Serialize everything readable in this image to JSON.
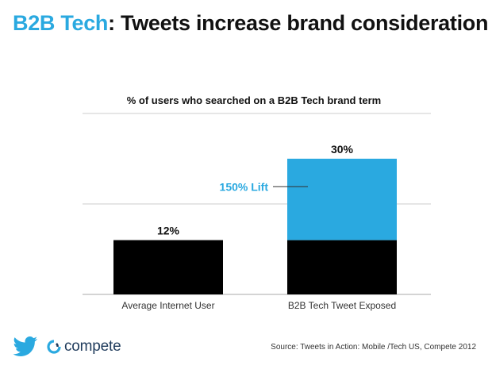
{
  "headline": {
    "accent": "B2B Tech",
    "rest": ": Tweets increase brand consideration"
  },
  "colors": {
    "accent": "#2aa9e0",
    "base_bar": "#000000",
    "lift_bar": "#2aa9e0",
    "grid": "#cccccc"
  },
  "chart_data": {
    "type": "bar",
    "stacked": true,
    "title": "% of users who searched on a B2B Tech brand term",
    "categories": [
      "Average Internet User",
      "B2B Tech Tweet Exposed"
    ],
    "series": [
      {
        "values": [
          12,
          12
        ]
      },
      {
        "values": [
          0,
          18
        ]
      }
    ],
    "totals": [
      "12%",
      "30%"
    ],
    "annotation": "150% Lift",
    "ylim": [
      0,
      40
    ],
    "grid": true
  },
  "footer": {
    "twitter_logo": "twitter-bird-icon",
    "compete_logo": "compete-icon",
    "compete_name": "compete",
    "source": "Source: Tweets in Action: Mobile /Tech US, Compete 2012"
  }
}
